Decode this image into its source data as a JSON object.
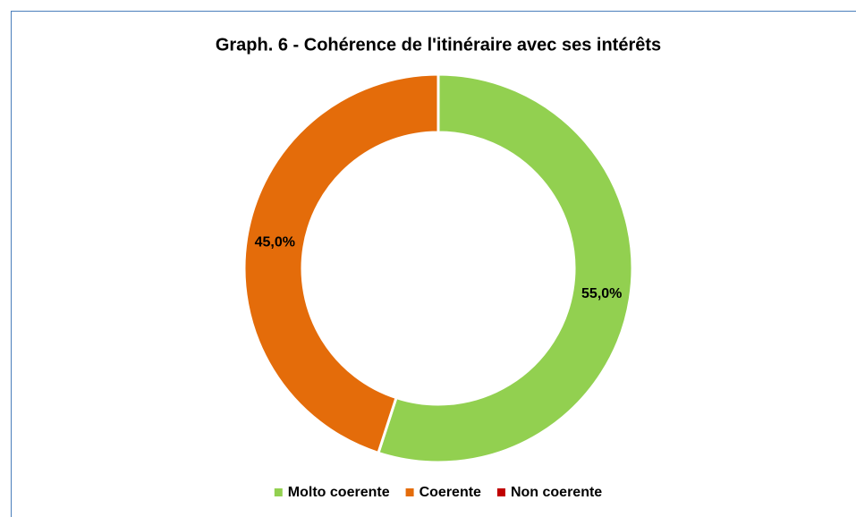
{
  "chart_data": {
    "type": "donut",
    "title": "Graph. 6 - Cohérence de l'itinéraire avec ses intérêts",
    "categories": [
      "Molto coerente",
      "Coerente",
      "Non coerente"
    ],
    "values": [
      55,
      45,
      0
    ],
    "value_labels": [
      "55,0%",
      "45,0%",
      null
    ],
    "colors": [
      "#92d050",
      "#e46c0a",
      "#c00000"
    ],
    "legend": "bottom"
  }
}
